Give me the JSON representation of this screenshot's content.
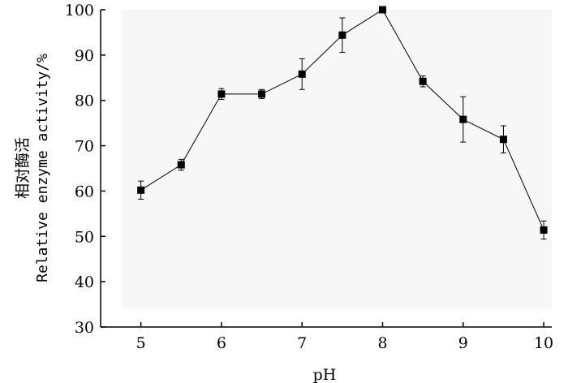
{
  "chart_data": {
    "type": "line",
    "xlabel": "pH",
    "ylabel_cn": "相对酶活",
    "ylabel_en": "Relative enzyme activity/%",
    "xlim": [
      4.5,
      10.1
    ],
    "ylim": [
      30,
      100
    ],
    "xticks": [
      5,
      6,
      7,
      8,
      9,
      10
    ],
    "yticks": [
      30,
      40,
      50,
      60,
      70,
      80,
      90,
      100
    ],
    "grid": false,
    "series": [
      {
        "marker": "square",
        "color": "#000000",
        "x": [
          5,
          5.5,
          6,
          6.5,
          7,
          7.5,
          8,
          8.5,
          9,
          9.5,
          10
        ],
        "y": [
          60.2,
          65.8,
          81.4,
          81.4,
          85.8,
          94.4,
          100,
          84.2,
          75.8,
          71.4,
          51.4
        ],
        "error": [
          2.0,
          1.2,
          1.2,
          1.0,
          3.4,
          3.8,
          0,
          1.2,
          5.0,
          3.0,
          2.0
        ]
      }
    ]
  }
}
